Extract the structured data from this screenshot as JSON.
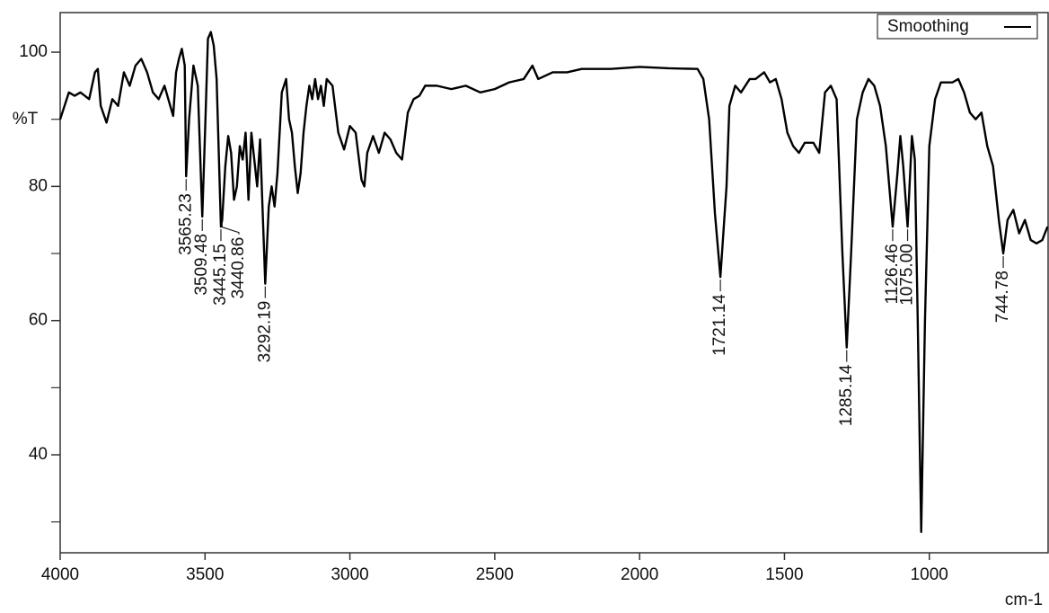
{
  "chart_data": {
    "type": "line",
    "y_label": "%T",
    "x_label": "cm-1",
    "xlim": [
      4000,
      590
    ],
    "ylim": [
      25.4,
      105.9
    ],
    "xticks": [
      4000,
      3500,
      3000,
      2500,
      2000,
      1500,
      1000
    ],
    "yticks": [
      40,
      60,
      80,
      100
    ],
    "yminorticks": [
      30,
      50,
      70,
      90
    ],
    "legend": "top-right",
    "series": [
      {
        "name": "Smoothing",
        "color": "#000000",
        "x": [
          4000,
          3970,
          3950,
          3930,
          3900,
          3880,
          3870,
          3860,
          3840,
          3820,
          3800,
          3780,
          3760,
          3740,
          3720,
          3700,
          3680,
          3660,
          3640,
          3620,
          3610,
          3600,
          3590,
          3580,
          3570,
          3565.23,
          3555,
          3540,
          3525,
          3509.48,
          3500,
          3490,
          3480,
          3470,
          3460,
          3445.15,
          3440.86,
          3430,
          3420,
          3410,
          3400,
          3390,
          3380,
          3370,
          3360,
          3350,
          3340,
          3330,
          3320,
          3310,
          3292.19,
          3280,
          3270,
          3260,
          3250,
          3235,
          3220,
          3210,
          3200,
          3190,
          3180,
          3170,
          3160,
          3150,
          3140,
          3130,
          3120,
          3110,
          3100,
          3090,
          3080,
          3060,
          3040,
          3020,
          3000,
          2980,
          2960,
          2950,
          2940,
          2920,
          2900,
          2880,
          2860,
          2840,
          2820,
          2800,
          2780,
          2760,
          2740,
          2700,
          2650,
          2600,
          2550,
          2500,
          2450,
          2400,
          2370,
          2350,
          2300,
          2250,
          2200,
          2100,
          2000,
          1900,
          1800,
          1780,
          1760,
          1740,
          1721.14,
          1700,
          1690,
          1670,
          1650,
          1620,
          1600,
          1570,
          1550,
          1530,
          1510,
          1490,
          1470,
          1450,
          1430,
          1400,
          1380,
          1360,
          1340,
          1320,
          1300,
          1285.14,
          1270,
          1250,
          1230,
          1210,
          1190,
          1170,
          1150,
          1126.46,
          1110,
          1100,
          1090,
          1075.0,
          1060,
          1050,
          1040,
          1028,
          1015,
          1000,
          980,
          960,
          940,
          920,
          900,
          880,
          860,
          840,
          820,
          800,
          780,
          760,
          744.78,
          730,
          710,
          690,
          670,
          650,
          630,
          610,
          592
        ],
        "values": [
          90,
          94,
          93.5,
          94,
          93,
          97,
          97.5,
          92,
          89.5,
          93,
          92,
          97,
          95,
          98,
          99,
          97,
          94,
          93,
          95,
          92,
          90.5,
          97,
          99,
          100.5,
          98,
          81.5,
          90,
          98,
          95,
          75.5,
          88,
          102,
          103,
          101,
          96,
          74,
          75,
          83,
          87.5,
          85,
          78,
          80,
          86,
          84,
          88,
          78,
          88,
          84,
          80,
          87,
          65.5,
          77,
          80,
          77,
          82,
          94,
          96,
          90,
          88,
          83,
          79,
          82,
          88,
          92,
          95,
          93,
          96,
          93,
          95,
          92,
          96,
          95,
          88,
          85.5,
          89,
          88,
          81,
          80,
          85,
          87.5,
          85,
          88,
          87,
          85,
          84,
          91,
          93,
          93.5,
          95,
          95,
          94.5,
          95,
          94,
          94.5,
          95.5,
          96,
          98,
          96,
          97,
          97,
          97.5,
          97.5,
          97.8,
          97.6,
          97.5,
          96,
          90,
          76,
          66.5,
          80,
          92,
          95,
          94,
          96,
          96,
          97,
          95.5,
          96,
          93,
          88,
          86,
          85,
          86.5,
          86.5,
          85,
          94,
          95,
          93,
          70,
          56,
          70,
          90,
          94,
          96,
          95,
          92,
          86,
          74,
          82,
          87.5,
          83,
          74,
          87.5,
          84,
          60,
          28.5,
          60,
          86,
          93,
          95.5,
          95.5,
          95.5,
          96,
          94,
          91,
          90,
          91,
          86,
          83,
          75,
          70,
          75,
          76.5,
          73,
          75,
          72,
          71.5,
          72,
          74
        ]
      }
    ],
    "peak_labels": [
      {
        "x": 3565.23,
        "label": "3565.23"
      },
      {
        "x": 3509.48,
        "label": "3509.48"
      },
      {
        "x": 3445.15,
        "label": "3445.15"
      },
      {
        "x": 3440.86,
        "label": "3440.86"
      },
      {
        "x": 3292.19,
        "label": "3292.19"
      },
      {
        "x": 1721.14,
        "label": "1721.14"
      },
      {
        "x": 1285.14,
        "label": "1285.14"
      },
      {
        "x": 1126.46,
        "label": "1126.46"
      },
      {
        "x": 1075.0,
        "label": "1075.00"
      },
      {
        "x": 744.78,
        "label": "744.78"
      }
    ]
  }
}
